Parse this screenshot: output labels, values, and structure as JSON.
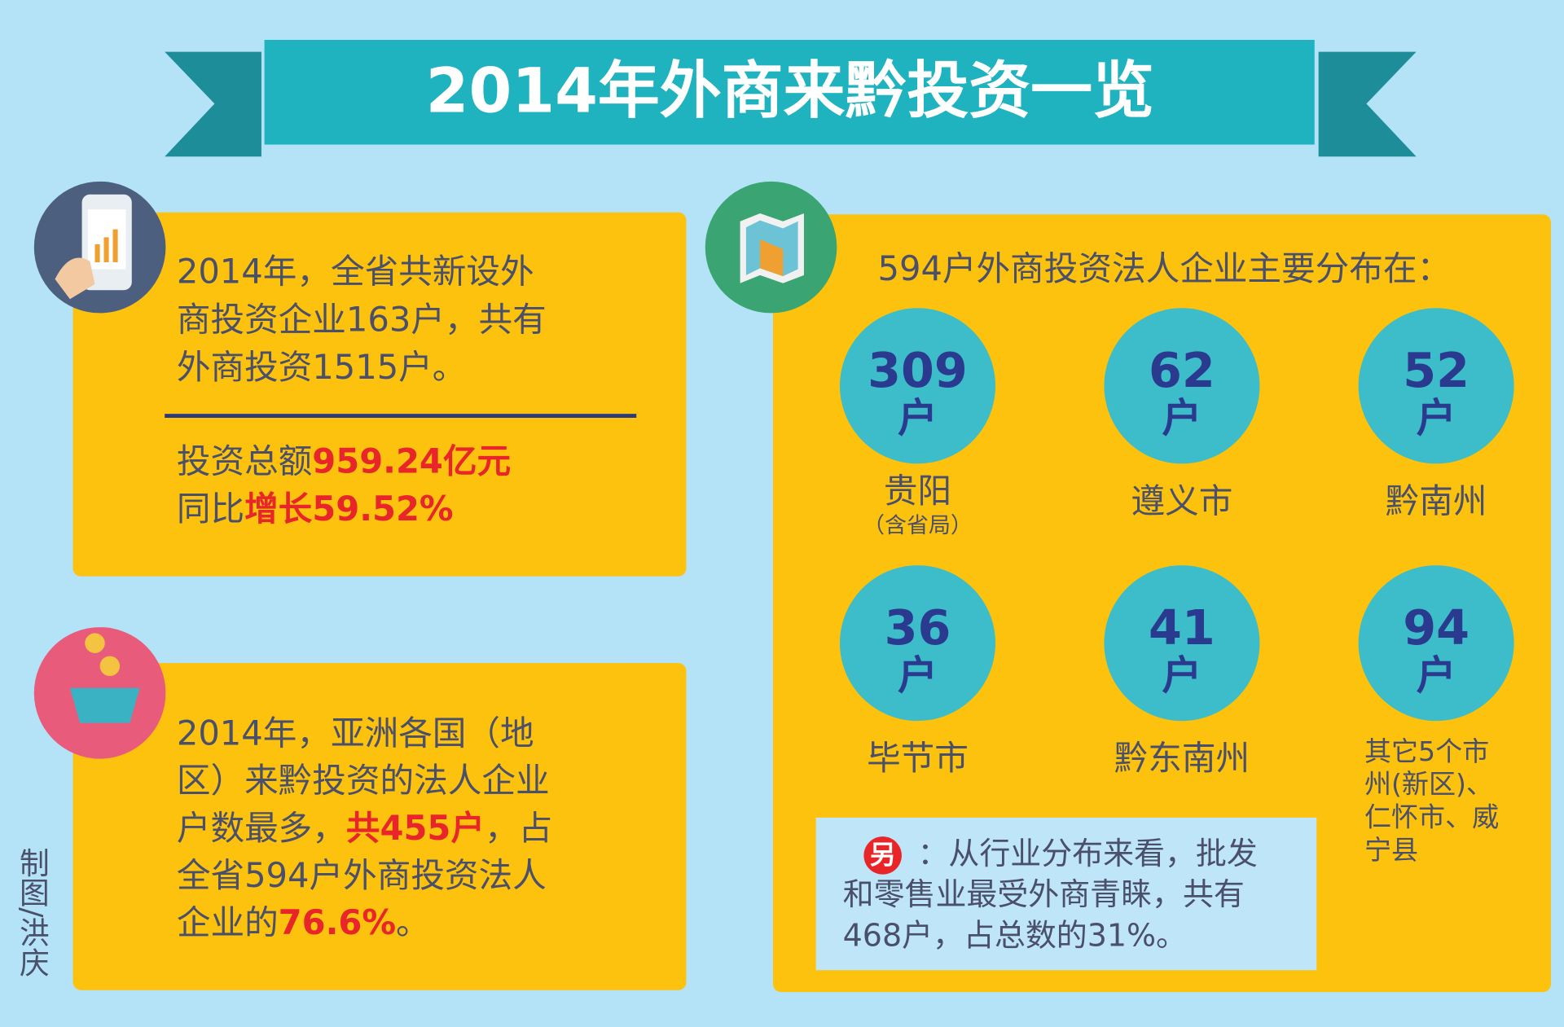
{
  "header": {
    "title": "2014年外商来黔投资一览"
  },
  "panel1": {
    "lines": [
      [
        "2014年，全省共新设外"
      ],
      [
        "商投资企业163户，共有"
      ],
      [
        "外商投资1515户。"
      ]
    ],
    "totals": [
      [
        "投资总额",
        {
          "text": "959.24亿元",
          "color": "#e8262a"
        }
      ],
      [
        "同比",
        {
          "text": "增长59.52%",
          "color": "#e8262a"
        }
      ]
    ]
  },
  "panel2": {
    "lines": [
      [
        "2014年，亚洲各国（地"
      ],
      [
        "区）来黔投资的法人企业"
      ],
      [
        "户数最多，",
        {
          "text": "共455户",
          "color": "#e8262a"
        },
        "，占"
      ],
      [
        "全省594户外商投资法人"
      ],
      [
        "企业的",
        {
          "text": "76.6%",
          "color": "#e8262a"
        },
        "。"
      ]
    ]
  },
  "panel3": {
    "heading": "594户外商投资法人企业主要分布在：",
    "regions": [
      {
        "count": "309",
        "unit": "户",
        "name": [
          "贵阳"
        ],
        "note": "（含省局）"
      },
      {
        "count": "62",
        "unit": "户",
        "name": [
          "遵义市"
        ]
      },
      {
        "count": "52",
        "unit": "户",
        "name": [
          "黔南州"
        ]
      },
      {
        "count": "36",
        "unit": "户",
        "name": [
          "毕节市"
        ]
      },
      {
        "count": "41",
        "unit": "户",
        "name": [
          "黔东南州"
        ]
      },
      {
        "count": "94",
        "unit": "户",
        "name": [
          "其它5个市",
          "州(新区)、",
          "仁怀市、威",
          "宁县"
        ]
      }
    ],
    "note": {
      "badge": "另",
      "lines": [
        "：从行业分布来看，批发",
        "和零售业最受外商青睐，共有",
        "468户，占总数的31%。"
      ]
    }
  },
  "credit": "制图/洪庆"
}
